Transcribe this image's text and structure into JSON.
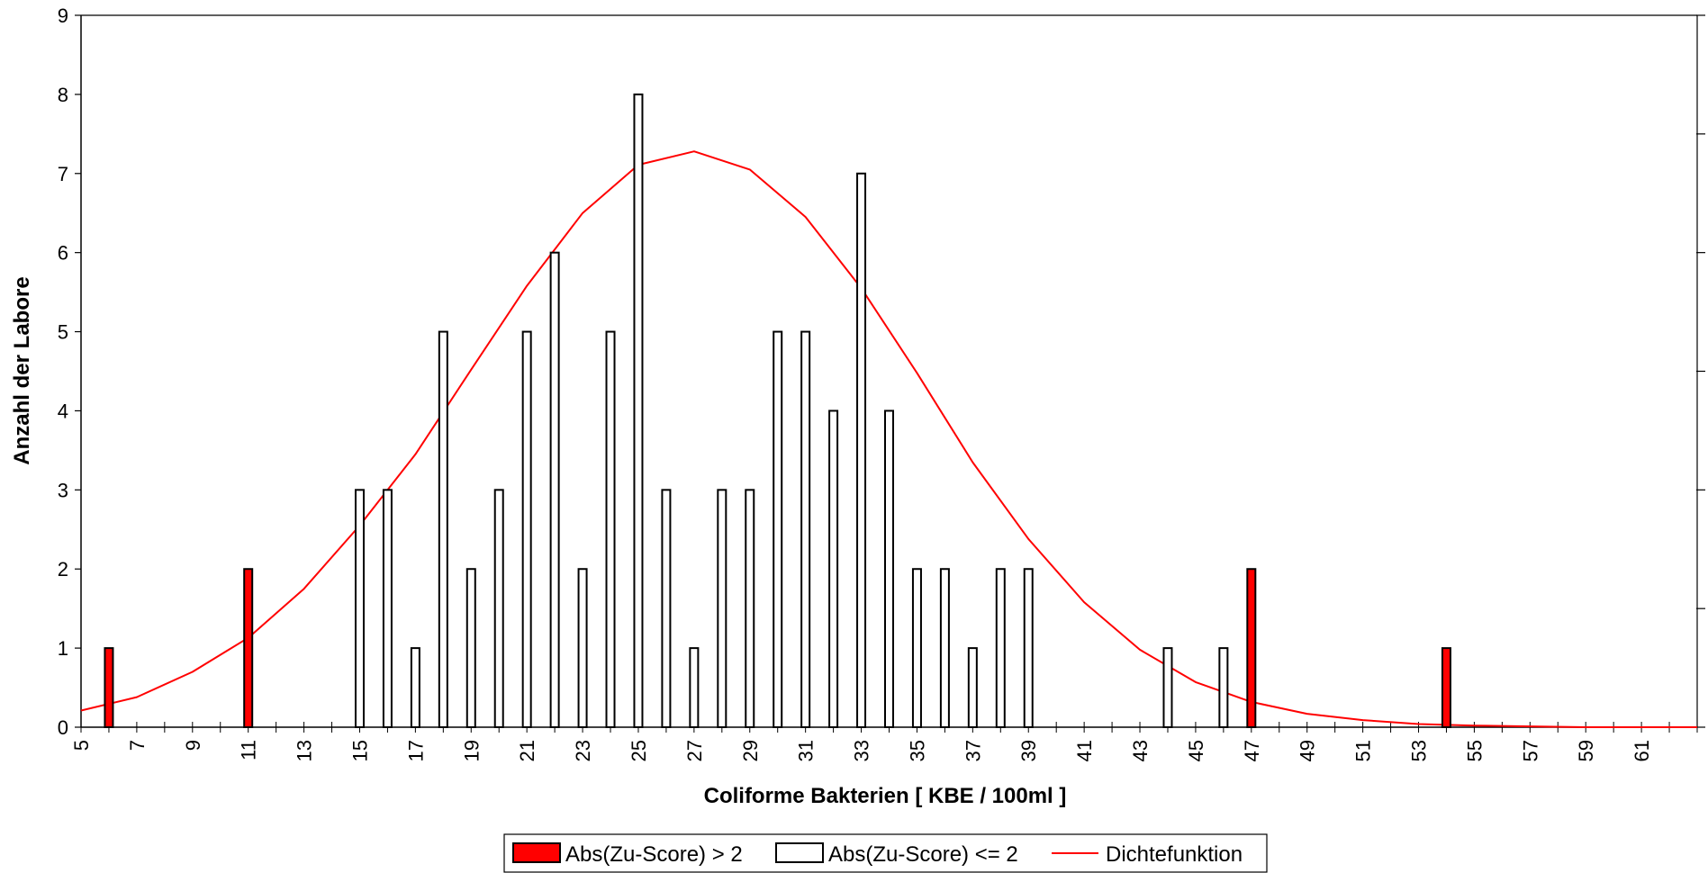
{
  "chart_data": {
    "type": "bar",
    "xlabel": "Coliforme Bakterien [ KBE / 100ml ]",
    "ylabel": "Anzahl der Labore",
    "xlim": [
      5,
      63
    ],
    "ylim": [
      0,
      9
    ],
    "x_ticks": [
      5,
      7,
      9,
      11,
      13,
      15,
      17,
      19,
      21,
      23,
      25,
      27,
      29,
      31,
      33,
      35,
      37,
      39,
      41,
      43,
      45,
      47,
      49,
      51,
      53,
      55,
      57,
      59,
      61
    ],
    "y_ticks": [
      0,
      1,
      2,
      3,
      4,
      5,
      6,
      7,
      8,
      9
    ],
    "legend_position": "bottom",
    "series": [
      {
        "name": "Abs(Zu-Score) > 2",
        "kind": "bar",
        "color": "#ff0000",
        "points": [
          {
            "x": 6,
            "y": 1
          },
          {
            "x": 11,
            "y": 2
          },
          {
            "x": 47,
            "y": 2
          },
          {
            "x": 54,
            "y": 1
          }
        ]
      },
      {
        "name": "Abs(Zu-Score) <= 2",
        "kind": "bar",
        "color": "#ffffff",
        "points": [
          {
            "x": 15,
            "y": 3
          },
          {
            "x": 16,
            "y": 3
          },
          {
            "x": 17,
            "y": 1
          },
          {
            "x": 18,
            "y": 5
          },
          {
            "x": 19,
            "y": 2
          },
          {
            "x": 20,
            "y": 3
          },
          {
            "x": 21,
            "y": 5
          },
          {
            "x": 22,
            "y": 6
          },
          {
            "x": 23,
            "y": 2
          },
          {
            "x": 24,
            "y": 5
          },
          {
            "x": 25,
            "y": 8
          },
          {
            "x": 26,
            "y": 3
          },
          {
            "x": 27,
            "y": 1
          },
          {
            "x": 28,
            "y": 3
          },
          {
            "x": 29,
            "y": 3
          },
          {
            "x": 30,
            "y": 5
          },
          {
            "x": 31,
            "y": 5
          },
          {
            "x": 32,
            "y": 4
          },
          {
            "x": 33,
            "y": 7
          },
          {
            "x": 34,
            "y": 4
          },
          {
            "x": 35,
            "y": 2
          },
          {
            "x": 36,
            "y": 2
          },
          {
            "x": 37,
            "y": 1
          },
          {
            "x": 38,
            "y": 2
          },
          {
            "x": 39,
            "y": 2
          },
          {
            "x": 44,
            "y": 1
          },
          {
            "x": 46,
            "y": 1
          }
        ]
      },
      {
        "name": "Dichtefunktion",
        "kind": "line",
        "color": "#ff0000",
        "points": [
          {
            "x": 5,
            "y": 0.21
          },
          {
            "x": 7,
            "y": 0.38
          },
          {
            "x": 9,
            "y": 0.7
          },
          {
            "x": 11,
            "y": 1.13
          },
          {
            "x": 13,
            "y": 1.75
          },
          {
            "x": 15,
            "y": 2.55
          },
          {
            "x": 17,
            "y": 3.45
          },
          {
            "x": 19,
            "y": 4.52
          },
          {
            "x": 21,
            "y": 5.58
          },
          {
            "x": 23,
            "y": 6.5
          },
          {
            "x": 25,
            "y": 7.11
          },
          {
            "x": 27,
            "y": 7.28
          },
          {
            "x": 29,
            "y": 7.05
          },
          {
            "x": 31,
            "y": 6.45
          },
          {
            "x": 33,
            "y": 5.55
          },
          {
            "x": 35,
            "y": 4.48
          },
          {
            "x": 37,
            "y": 3.35
          },
          {
            "x": 39,
            "y": 2.38
          },
          {
            "x": 41,
            "y": 1.58
          },
          {
            "x": 43,
            "y": 0.98
          },
          {
            "x": 45,
            "y": 0.57
          },
          {
            "x": 47,
            "y": 0.32
          },
          {
            "x": 49,
            "y": 0.17
          },
          {
            "x": 51,
            "y": 0.09
          },
          {
            "x": 53,
            "y": 0.04
          },
          {
            "x": 55,
            "y": 0.02
          },
          {
            "x": 57,
            "y": 0.01
          },
          {
            "x": 59,
            "y": 0.0
          },
          {
            "x": 61,
            "y": 0.0
          },
          {
            "x": 63,
            "y": 0.0
          }
        ]
      }
    ]
  }
}
